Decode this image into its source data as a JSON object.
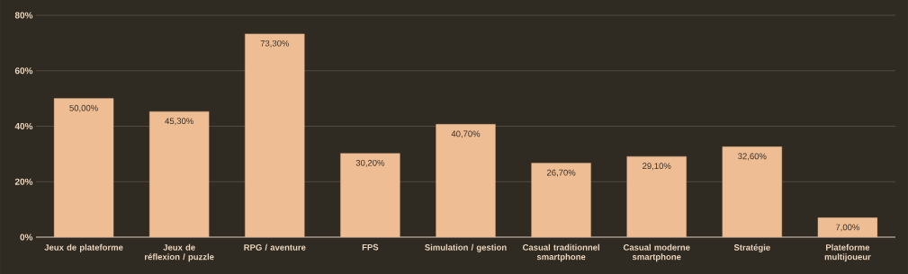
{
  "chart_data": {
    "type": "bar",
    "categories": [
      "Jeux de plateforme",
      "Jeux de réflexion / puzzle",
      "RPG / aventure",
      "FPS",
      "Simulation / gestion",
      "Casual traditionnel smartphone",
      "Casual moderne smartphone",
      "Stratégie",
      "Plateforme multijoueur"
    ],
    "values": [
      50.0,
      45.3,
      73.3,
      30.2,
      40.7,
      26.7,
      29.1,
      32.6,
      7.0
    ],
    "value_labels": [
      "50,00%",
      "45,30%",
      "73,30%",
      "30,20%",
      "40,70%",
      "26,70%",
      "29,10%",
      "32,60%",
      "7,00%"
    ],
    "color": "#efbd93",
    "ylim": [
      0,
      80
    ],
    "yticks": [
      {
        "value": 0,
        "label": "0%"
      },
      {
        "value": 20,
        "label": "20%"
      },
      {
        "value": 40,
        "label": "40%"
      },
      {
        "value": 60,
        "label": "60%"
      },
      {
        "value": 80,
        "label": "80%"
      }
    ],
    "grid": "y"
  }
}
